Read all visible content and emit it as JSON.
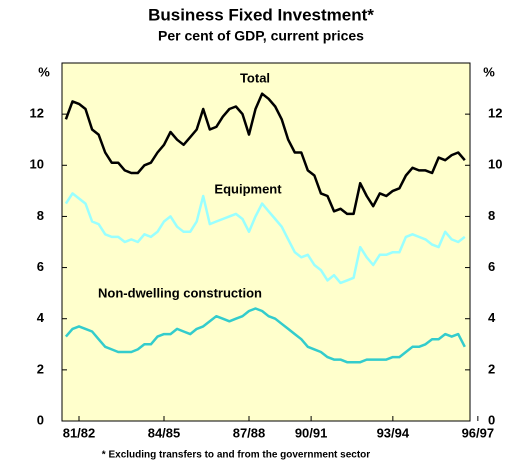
{
  "chart_data": {
    "type": "line",
    "title": "Business Fixed Investment*",
    "subtitle": "Per cent of GDP, current prices",
    "y_label": "%",
    "y2_label": "%",
    "footnote": "* Excluding transfers to and from the government sector",
    "x": [
      0,
      1,
      2,
      3,
      4,
      5,
      6,
      7,
      8,
      9,
      10,
      11,
      12,
      13,
      14,
      15,
      16,
      17,
      18,
      19,
      20,
      21,
      22,
      23,
      24,
      25,
      26,
      27,
      28,
      29,
      30,
      31,
      32,
      33,
      34,
      35,
      36,
      37,
      38,
      39,
      40,
      41,
      42,
      43,
      44,
      45,
      46,
      47,
      48,
      49,
      50,
      51,
      52,
      53,
      54,
      55,
      56,
      57,
      58,
      59,
      60,
      61
    ],
    "xlim": [
      -0.6,
      61.8
    ],
    "xticks": [
      {
        "value": 2,
        "label": "81/82"
      },
      {
        "value": 15,
        "label": "84/85"
      },
      {
        "value": 28,
        "label": "87/88"
      },
      {
        "value": 37.5,
        "label": "90/91"
      },
      {
        "value": 50,
        "label": "93/94"
      },
      {
        "value": 63,
        "label": "96/97"
      }
    ],
    "ylim": [
      0,
      14
    ],
    "yticks": [
      0,
      2,
      4,
      6,
      8,
      10,
      12
    ],
    "y2lim": [
      0,
      14
    ],
    "y2ticks": [
      0,
      2,
      4,
      6,
      8,
      10,
      12
    ],
    "background": "#ffffcc",
    "series": [
      {
        "name": "Total",
        "color": "#000000",
        "values": [
          11.8,
          12.5,
          12.4,
          12.2,
          11.4,
          11.2,
          10.5,
          10.1,
          10.1,
          9.8,
          9.7,
          9.7,
          10.0,
          10.1,
          10.5,
          10.8,
          11.3,
          11.0,
          10.8,
          11.1,
          11.4,
          12.2,
          11.4,
          11.5,
          11.9,
          12.2,
          12.3,
          12.0,
          11.2,
          12.2,
          12.8,
          12.6,
          12.3,
          11.8,
          11.0,
          10.5,
          10.5,
          9.8,
          9.6,
          8.9,
          8.8,
          8.2,
          8.3,
          8.1,
          8.1,
          9.3,
          8.8,
          8.4,
          8.9,
          8.8,
          9.0,
          9.1,
          9.6,
          9.9,
          9.8,
          9.8,
          9.7,
          10.3,
          10.2,
          10.4,
          10.5,
          10.2
        ]
      },
      {
        "name": "Equipment",
        "color": "#99ffff",
        "values": [
          8.5,
          8.9,
          8.7,
          8.5,
          7.8,
          7.7,
          7.3,
          7.2,
          7.2,
          7.0,
          7.1,
          7.0,
          7.3,
          7.2,
          7.4,
          7.8,
          8.0,
          7.6,
          7.4,
          7.4,
          7.8,
          8.8,
          7.7,
          7.8,
          7.9,
          8.0,
          8.1,
          7.9,
          7.4,
          8.0,
          8.5,
          8.2,
          7.9,
          7.6,
          7.1,
          6.6,
          6.4,
          6.5,
          6.1,
          5.9,
          5.5,
          5.7,
          5.4,
          5.5,
          5.6,
          6.8,
          6.4,
          6.1,
          6.5,
          6.5,
          6.6,
          6.6,
          7.2,
          7.3,
          7.2,
          7.1,
          6.9,
          6.8,
          7.4,
          7.1,
          7.0,
          7.2
        ]
      },
      {
        "name": "Non-dwelling construction",
        "color": "#33cccc",
        "values": [
          3.3,
          3.6,
          3.7,
          3.6,
          3.5,
          3.2,
          2.9,
          2.8,
          2.7,
          2.7,
          2.7,
          2.8,
          3.0,
          3.0,
          3.3,
          3.4,
          3.4,
          3.6,
          3.5,
          3.4,
          3.6,
          3.7,
          3.9,
          4.1,
          4.0,
          3.9,
          4.0,
          4.1,
          4.3,
          4.4,
          4.3,
          4.1,
          4.0,
          3.8,
          3.6,
          3.4,
          3.2,
          2.9,
          2.8,
          2.7,
          2.5,
          2.4,
          2.4,
          2.3,
          2.3,
          2.3,
          2.4,
          2.4,
          2.4,
          2.4,
          2.5,
          2.5,
          2.7,
          2.9,
          2.9,
          3.0,
          3.2,
          3.2,
          3.4,
          3.3,
          3.4,
          2.9
        ]
      }
    ]
  }
}
